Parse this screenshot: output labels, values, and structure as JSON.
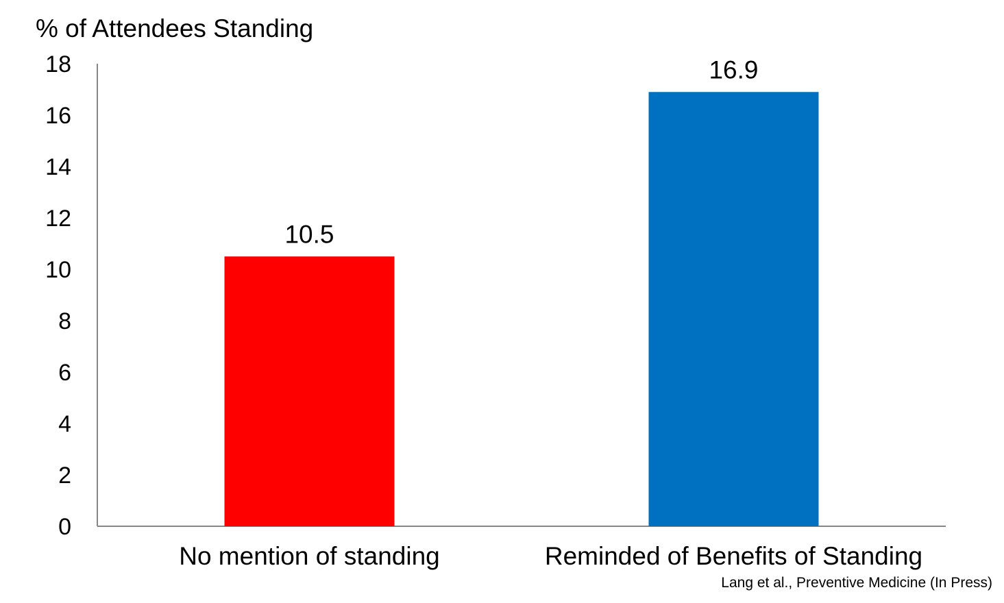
{
  "chart_data": {
    "type": "bar",
    "title": "",
    "ylabel": "% of Attendees Standing",
    "xlabel": "",
    "categories": [
      "No mention of standing",
      "Reminded of Benefits of Standing"
    ],
    "values": [
      10.5,
      16.9
    ],
    "value_labels": [
      "10.5",
      "16.9"
    ],
    "colors": [
      "#ff0000",
      "#0070c0"
    ],
    "ylim": [
      0,
      18
    ],
    "yticks": [
      0,
      2,
      4,
      6,
      8,
      10,
      12,
      14,
      16,
      18
    ],
    "grid": false,
    "legend": "none",
    "source_note": "Lang et al., Preventive Medicine (In Press)"
  }
}
